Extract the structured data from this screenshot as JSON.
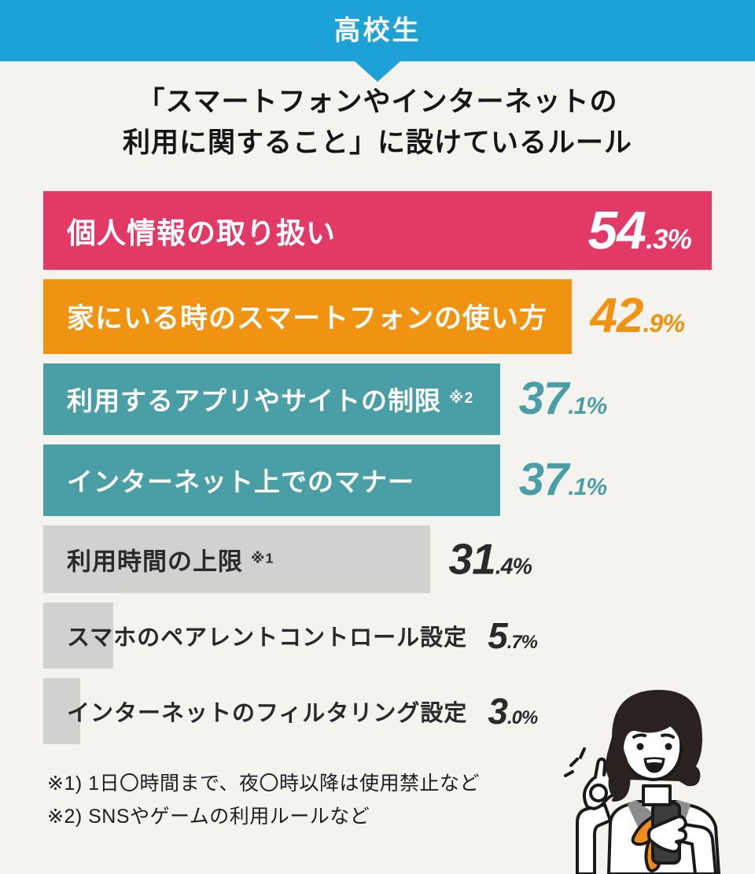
{
  "header": {
    "label": "高校生",
    "band_color": "#1da2d8"
  },
  "title": {
    "line1": "「スマートフォンやインターネットの",
    "line2": "利用に関すること」に設けているルール"
  },
  "chart_data": {
    "type": "bar",
    "orientation": "horizontal",
    "unit": "%",
    "title": "「スマートフォンやインターネットの利用に関すること」に設けているルール",
    "max_scale_value": 54.3,
    "categories": [
      "個人情報の取り扱い",
      "家にいる時のスマートフォンの使い方",
      "利用するアプリやサイトの制限 ※2",
      "インターネット上でのマナー",
      "利用時間の上限 ※1",
      "スマホのペアレントコントロール設定",
      "インターネットのフィルタリング設定"
    ],
    "values": [
      54.3,
      42.9,
      37.1,
      37.1,
      31.4,
      5.7,
      3.0
    ],
    "bars": [
      {
        "label": "個人情報の取り扱い",
        "note": "",
        "value": 54.3,
        "value_big": "54",
        "value_small": ".3%",
        "color": "#e23966",
        "label_color": "#ffffff",
        "value_color": "#ffffff",
        "value_inside": true,
        "label_over_bar": true
      },
      {
        "label": "家にいる時のスマートフォンの使い方",
        "note": "",
        "value": 42.9,
        "value_big": "42",
        "value_small": ".9%",
        "color": "#f09310",
        "label_color": "#ffffff",
        "value_color": "#f09310",
        "value_inside": false,
        "label_over_bar": true
      },
      {
        "label": "利用するアプリやサイトの制限",
        "note": "※2",
        "value": 37.1,
        "value_big": "37",
        "value_small": ".1%",
        "color": "#4a9fa7",
        "label_color": "#ffffff",
        "value_color": "#4a9fa7",
        "value_inside": false,
        "label_over_bar": true
      },
      {
        "label": "インターネット上でのマナー",
        "note": "",
        "value": 37.1,
        "value_big": "37",
        "value_small": ".1%",
        "color": "#4a9fa7",
        "label_color": "#ffffff",
        "value_color": "#4a9fa7",
        "value_inside": false,
        "label_over_bar": true
      },
      {
        "label": "利用時間の上限",
        "note": "※1",
        "value": 31.4,
        "value_big": "31",
        "value_small": ".4%",
        "color": "#d1d1cf",
        "label_color": "#2a2a2a",
        "value_color": "#2a2a2a",
        "value_inside": false,
        "label_over_bar": true
      },
      {
        "label": "スマホのペアレントコントロール設定",
        "note": "",
        "value": 5.7,
        "value_big": "5",
        "value_small": ".7%",
        "color": "#d1d1cf",
        "label_color": "#2a2a2a",
        "value_color": "#2a2a2a",
        "value_inside": false,
        "label_over_bar": false
      },
      {
        "label": "インターネットのフィルタリング設定",
        "note": "",
        "value": 3.0,
        "value_big": "3",
        "value_small": ".0%",
        "color": "#d1d1cf",
        "label_color": "#2a2a2a",
        "value_color": "#2a2a2a",
        "value_inside": false,
        "label_over_bar": false
      }
    ]
  },
  "footnotes": [
    "※1) 1日〇時間まで、夜〇時以降は使用禁止など",
    "※2) SNSやゲームの利用ルールなど"
  ],
  "illustration": {
    "name": "woman-ok-sign-holding-smartphone",
    "hair_color": "#2a221f",
    "scarf_color": "#f08c1c",
    "collar_color": "#8c8c8c",
    "phone_color": "#3c3c3c",
    "outline_color": "#1a1a1a"
  }
}
